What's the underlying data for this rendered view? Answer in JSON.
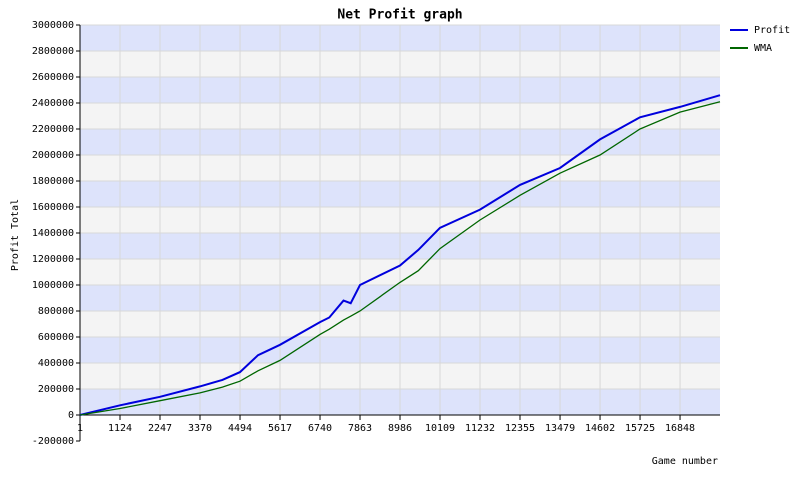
{
  "chart_data": {
    "type": "line",
    "title": "Net Profit graph",
    "x_label": "Game number",
    "y_label": "Profit Total",
    "x": [
      1,
      1124,
      2247,
      3370,
      4000,
      4494,
      5000,
      5617,
      6740,
      7000,
      7400,
      7600,
      7863,
      8986,
      9500,
      10109,
      11232,
      12355,
      13479,
      14602,
      15725,
      16848,
      17970
    ],
    "series": [
      {
        "name": "Profit",
        "color": "#0000dd",
        "values": [
          0,
          75000,
          140000,
          220000,
          270000,
          330000,
          460000,
          540000,
          715000,
          750000,
          880000,
          860000,
          1000000,
          1150000,
          1270000,
          1440000,
          1580000,
          1770000,
          1900000,
          2120000,
          2290000,
          2370000,
          2460000
        ]
      },
      {
        "name": "WMA",
        "color": "#006600",
        "values": [
          0,
          50000,
          110000,
          170000,
          215000,
          260000,
          340000,
          420000,
          620000,
          660000,
          730000,
          760000,
          800000,
          1020000,
          1110000,
          1280000,
          1500000,
          1690000,
          1860000,
          2000000,
          2200000,
          2330000,
          2410000
        ]
      }
    ],
    "xlim": [
      1,
      17970
    ],
    "xticks": [
      1,
      1124,
      2247,
      3370,
      4494,
      5617,
      6740,
      7863,
      8986,
      10109,
      11232,
      12355,
      13479,
      14602,
      15725,
      16848
    ],
    "ylim": [
      -200000,
      3000000
    ],
    "yticks": [
      -200000,
      0,
      200000,
      400000,
      600000,
      800000,
      1000000,
      1200000,
      1400000,
      1600000,
      1800000,
      2000000,
      2200000,
      2400000,
      2600000,
      2800000,
      3000000
    ],
    "grid": true,
    "legend": "top-right"
  }
}
